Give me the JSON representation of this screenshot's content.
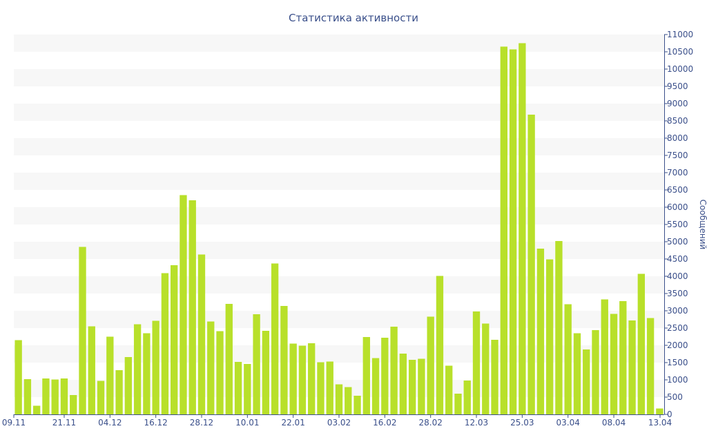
{
  "chart_data": {
    "type": "bar",
    "title": "Статистика активности",
    "ylabel": "Сообщений",
    "xlabel": "",
    "ylim": [
      0,
      11000
    ],
    "y_ticks": [
      0,
      500,
      1000,
      1500,
      2000,
      2500,
      3000,
      3500,
      4000,
      4500,
      5000,
      5500,
      6000,
      6500,
      7000,
      7500,
      8000,
      8500,
      9000,
      9500,
      10000,
      10500,
      11000
    ],
    "y_axis_side": "right",
    "grid": "horizontal-bands",
    "legend": "none",
    "bar_color": "#b8e02a",
    "band_color": "#f7f7f7",
    "text_color": "#3a4f8a",
    "x_tick_labels": [
      {
        "index": 0,
        "label": "09.11"
      },
      {
        "index": 5,
        "label": "21.11"
      },
      {
        "index": 10,
        "label": "04.12"
      },
      {
        "index": 15,
        "label": "16.12"
      },
      {
        "index": 20,
        "label": "28.12"
      },
      {
        "index": 25,
        "label": "10.01"
      },
      {
        "index": 30,
        "label": "22.01"
      },
      {
        "index": 35,
        "label": "03.02"
      },
      {
        "index": 40,
        "label": "16.02"
      },
      {
        "index": 45,
        "label": "28.02"
      },
      {
        "index": 50,
        "label": "12.03"
      },
      {
        "index": 55,
        "label": "25.03"
      },
      {
        "index": 60,
        "label": "03.04"
      },
      {
        "index": 65,
        "label": "08.04"
      },
      {
        "index": 70,
        "label": "13.04"
      }
    ],
    "values": [
      2150,
      1020,
      250,
      1040,
      1010,
      1040,
      560,
      4850,
      2550,
      970,
      2250,
      1280,
      1660,
      2610,
      2350,
      2710,
      4090,
      4320,
      6350,
      6200,
      4630,
      2690,
      2410,
      3200,
      1520,
      1460,
      2900,
      2420,
      4370,
      3140,
      2050,
      1990,
      2060,
      1510,
      1530,
      870,
      790,
      540,
      2240,
      1630,
      2220,
      2540,
      1760,
      1580,
      1610,
      2830,
      4010,
      1410,
      600,
      980,
      2980,
      2630,
      2160,
      10650,
      10570,
      10750,
      8680,
      4800,
      4490,
      5020,
      3190,
      2350,
      1880,
      2440,
      3330,
      2910,
      3280,
      2720,
      4070,
      2790,
      170
    ]
  }
}
